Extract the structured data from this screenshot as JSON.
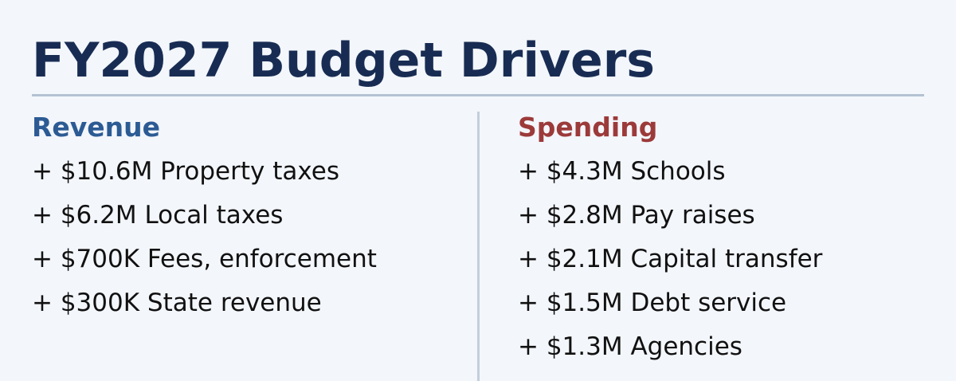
{
  "title": "FY2027 Budget Drivers",
  "colors": {
    "background": "#f3f6fb",
    "title": "#182c53",
    "revenue_heading": "#2c5b94",
    "spending_heading": "#9c3a3a",
    "rule": "#b3c2d2",
    "text": "#111111"
  },
  "revenue": {
    "heading": "Revenue",
    "items": [
      "+ $10.6M Property taxes",
      "+ $6.2M Local taxes",
      "+ $700K Fees, enforcement",
      "+ $300K State revenue"
    ]
  },
  "spending": {
    "heading": "Spending",
    "items": [
      "+ $4.3M Schools",
      "+ $2.8M Pay raises",
      "+ $2.1M Capital transfer",
      "+ $1.5M Debt service",
      "+ $1.3M Agencies"
    ]
  }
}
